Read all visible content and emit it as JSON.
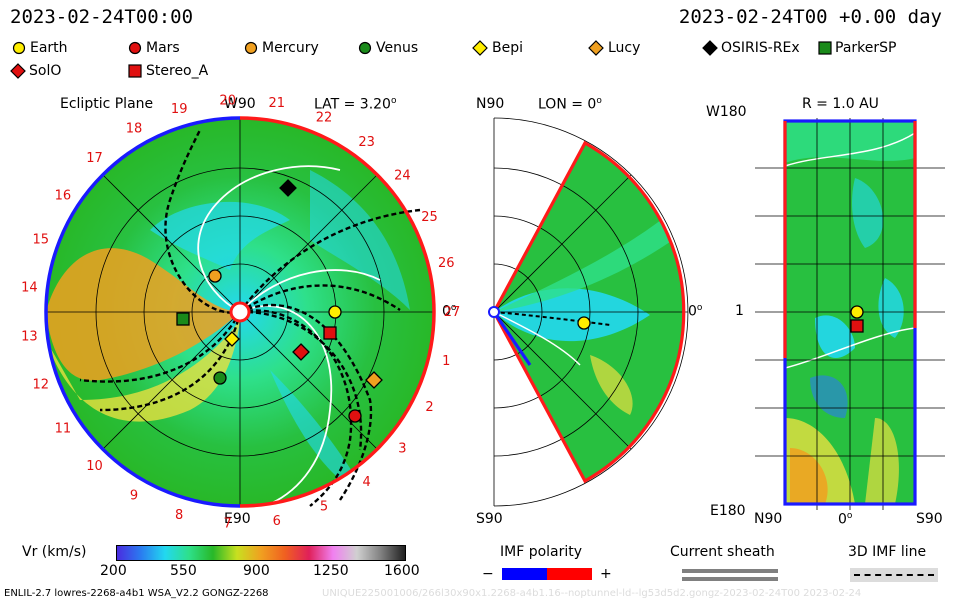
{
  "header": {
    "left_datetime": "2023-02-24T00:00",
    "right_datetime": "2023-02-24T00 +0.00 day"
  },
  "legend": [
    {
      "name": "Earth",
      "marker": "circle",
      "color": "#ffee00"
    },
    {
      "name": "Mars",
      "marker": "circle",
      "color": "#e01010"
    },
    {
      "name": "Mercury",
      "marker": "circle",
      "color": "#f0a020"
    },
    {
      "name": "Venus",
      "marker": "circle",
      "color": "#1a8a1a"
    },
    {
      "name": "Bepi",
      "marker": "diamond",
      "color": "#ffee00"
    },
    {
      "name": "Lucy",
      "marker": "diamond",
      "color": "#f0a020"
    },
    {
      "name": "OSIRIS-REx",
      "marker": "diamond",
      "color": "#000000"
    },
    {
      "name": "ParkerSP",
      "marker": "square",
      "color": "#1a8a1a"
    },
    {
      "name": "SolO",
      "marker": "diamond",
      "color": "#e01010"
    },
    {
      "name": "Stereo_A",
      "marker": "square",
      "color": "#e01010"
    }
  ],
  "ecliptic": {
    "title": "Ecliptic Plane",
    "lat_label": "LAT = 3.20",
    "w90": "W90",
    "e90": "E90",
    "zero": "0",
    "sector_numbers": [
      "1",
      "2",
      "3",
      "4",
      "5",
      "6",
      "7",
      "8",
      "9",
      "10",
      "11",
      "12",
      "13",
      "14",
      "15",
      "16",
      "17",
      "18",
      "19",
      "20",
      "21",
      "22",
      "23",
      "24",
      "25",
      "26",
      "27"
    ]
  },
  "meridional": {
    "lon_label": "LON = 0",
    "n90": "N90",
    "s90": "S90",
    "zero": "0"
  },
  "latlon": {
    "title": "R = 1.0 AU",
    "w180": "W180",
    "e180": "E180",
    "one": "1",
    "x_ticks": [
      "N90",
      "0",
      "S90"
    ]
  },
  "colorbar": {
    "label": "Vr (km/s)",
    "ticks": [
      "200",
      "550",
      "900",
      "1250",
      "1600"
    ],
    "colors": [
      "#4a2ce0",
      "#2a7cf0",
      "#22d8f0",
      "#2ee08a",
      "#28b828",
      "#c8e020",
      "#f0a020",
      "#f06020",
      "#e0205a",
      "#f080f0",
      "#d0d0d0",
      "#808080",
      "#202020"
    ]
  },
  "imf_polarity": {
    "label": "IMF polarity",
    "minus": "−",
    "plus": "+",
    "neg_color": "#0000ff",
    "pos_color": "#ff0000"
  },
  "current_sheath": {
    "label": "Current sheath"
  },
  "imf_line": {
    "label": "3D IMF line"
  },
  "footer": {
    "left": "ENLIL-2.7 lowres-2268-a4b1 WSA_V2.2 GONGZ-2268",
    "right": "UNIQUE225001006/266l30x90x1.2268-a4b1.16--noptunnel-ld--lg53d5d2.gongz-2023-02-24T00    2023-02-24"
  }
}
